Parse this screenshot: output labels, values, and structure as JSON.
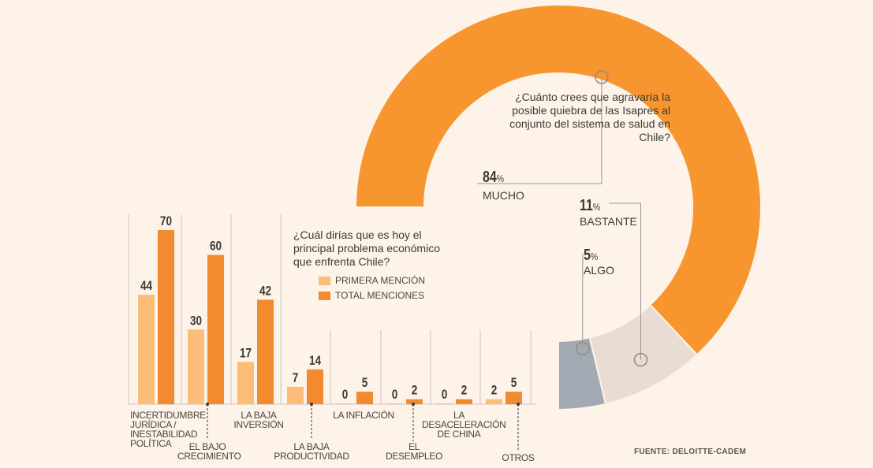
{
  "chart_data": [
    {
      "type": "pie",
      "variant": "donut-three-quarter",
      "title": "¿Cuánto crees que agravaría la posible quiebra de las Isapres al conjunto del sistema de salud en Chile?",
      "slices": [
        {
          "label": "MUCHO",
          "value": 84,
          "display": "84",
          "color": "#f7962f"
        },
        {
          "label": "BASTANTE",
          "value": 11,
          "display": "11",
          "color": "#e8dcd3"
        },
        {
          "label": "ALGO",
          "value": 5,
          "display": "5",
          "color": "#a3a9b3"
        }
      ],
      "unit": "%"
    },
    {
      "type": "bar",
      "title": "¿Cuál dirías que es hoy el principal problema económico que enfrenta Chile?",
      "categories": [
        "INCERTIDUMBRE JURÍDICA / INESTABILIDAD POLÍTICA",
        "EL BAJO CRECIMIENTO",
        "LA BAJA INVERSIÓN",
        "LA BAJA PRODUCTIVIDAD",
        "LA INFLACIÓN",
        "EL DESEMPLEO",
        "LA DESACELERACIÓN DE CHINA",
        "OTROS"
      ],
      "series": [
        {
          "name": "PRIMERA MENCIÓN",
          "color": "#fcbd78",
          "values": [
            44,
            30,
            17,
            7,
            0,
            0,
            0,
            2
          ]
        },
        {
          "name": "TOTAL MENCIONES",
          "color": "#f28a30",
          "values": [
            70,
            60,
            42,
            14,
            5,
            2,
            2,
            5
          ]
        }
      ],
      "ylim": [
        0,
        70
      ],
      "xlabel": "",
      "ylabel": "",
      "legend": "top-right"
    }
  ],
  "source": "FUENTE: DELOITTE-CADEM"
}
